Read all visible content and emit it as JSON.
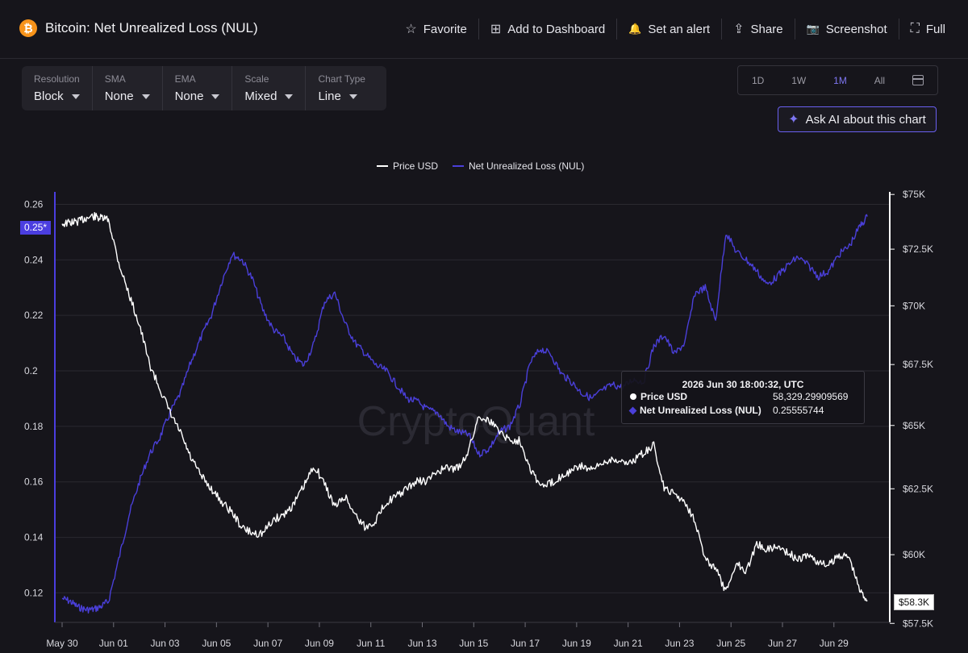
{
  "header": {
    "coin_icon": "₿",
    "title": "Bitcoin: Net Unrealized Loss (NUL)",
    "actions": [
      {
        "label": "Favorite",
        "icon": "star-icon",
        "glyph": "☆"
      },
      {
        "label": "Add to Dashboard",
        "icon": "add-dashboard-icon",
        "glyph": "⊞"
      },
      {
        "label": "Set an alert",
        "icon": "bell-icon",
        "glyph": "🔔"
      },
      {
        "label": "Share",
        "icon": "share-icon",
        "glyph": "⇪"
      },
      {
        "label": "Screenshot",
        "icon": "camera-icon",
        "glyph": "📷"
      },
      {
        "label": "Full",
        "icon": "fullscreen-icon",
        "glyph": "⛶"
      }
    ]
  },
  "controls": [
    {
      "label": "Resolution",
      "value": "Block"
    },
    {
      "label": "SMA",
      "value": "None"
    },
    {
      "label": "EMA",
      "value": "None"
    },
    {
      "label": "Scale",
      "value": "Mixed"
    },
    {
      "label": "Chart Type",
      "value": "Line"
    }
  ],
  "ranges": [
    "1D",
    "1W",
    "1M",
    "All"
  ],
  "active_range": "1M",
  "ai_button": "Ask AI about this chart",
  "tooltip": {
    "time": "2026 Jun 30 18:00:32, UTC",
    "rows": [
      {
        "name": "Price USD",
        "value": "58,329.29909569"
      },
      {
        "name": "Net Unrealized Loss (NUL)",
        "value": "0.25555744"
      }
    ]
  },
  "current_labels": {
    "left": "0.25*",
    "right": "$58.3K"
  },
  "watermark": "CryptoQuant",
  "colors": {
    "price": "#ffffff",
    "nul": "#4a3fd9",
    "accent": "#6a5ff0"
  },
  "chart_data": {
    "type": "line",
    "legend": [
      "Price USD",
      "Net Unrealized Loss (NUL)"
    ],
    "legend_position": "top-center",
    "x_ticks": [
      "May 30",
      "Jun 01",
      "Jun 03",
      "Jun 05",
      "Jun 07",
      "Jun 09",
      "Jun 11",
      "Jun 13",
      "Jun 15",
      "Jun 17",
      "Jun 19",
      "Jun 21",
      "Jun 23",
      "Jun 25",
      "Jun 27",
      "Jun 29"
    ],
    "x_range_days": [
      0,
      31.7
    ],
    "left_axis": {
      "label": "Net Unrealized Loss (NUL)",
      "ticks": [
        0.12,
        0.14,
        0.16,
        0.18,
        0.2,
        0.22,
        0.24,
        0.26
      ],
      "range": [
        0.1085,
        0.2645
      ]
    },
    "right_axis": {
      "label": "Price USD",
      "ticks": [
        "$57.5K",
        "$60K",
        "$62.5K",
        "$65K",
        "$67.5K",
        "$70K",
        "$72.5K",
        "$75K"
      ],
      "tick_values": [
        57500,
        60000,
        62500,
        65000,
        67500,
        70000,
        72500,
        75000
      ],
      "scale": "log",
      "range": [
        57450,
        75120
      ]
    },
    "grid": true,
    "series": [
      {
        "name": "Price USD",
        "axis": "right",
        "x": [
          0,
          0.3,
          0.6,
          0.9,
          1.2,
          1.5,
          1.8,
          2.2,
          2.6,
          3.0,
          3.4,
          3.8,
          4.2,
          4.6,
          5.0,
          5.4,
          5.8,
          6.2,
          6.6,
          7.0,
          7.4,
          7.8,
          8.2,
          8.6,
          9.0,
          9.4,
          9.8,
          10.2,
          10.6,
          11.0,
          11.4,
          11.8,
          12.2,
          12.6,
          13.0,
          13.4,
          13.8,
          14.2,
          14.6,
          15.0,
          15.4,
          15.8,
          16.2,
          16.6,
          17.0,
          17.4,
          17.8,
          18.2,
          18.6,
          19.0,
          19.4,
          19.8,
          20.2,
          20.6,
          21.0,
          21.4,
          21.8,
          22.2,
          22.6,
          23.0,
          23.4,
          23.8,
          24.2,
          24.6,
          25.0,
          25.4,
          25.8,
          26.2,
          26.6,
          27.0,
          27.4,
          27.8,
          28.2,
          28.6,
          29.0,
          29.4,
          29.8,
          30.2,
          30.6,
          31.0,
          31.3
        ],
        "values": [
          73650,
          73700,
          73750,
          73900,
          74000,
          73900,
          73850,
          71900,
          70500,
          69200,
          67500,
          66500,
          65500,
          64700,
          63700,
          63000,
          62500,
          62000,
          61600,
          61000,
          60800,
          60800,
          61300,
          61500,
          61900,
          62600,
          63400,
          62700,
          61800,
          62200,
          61500,
          61000,
          61300,
          62000,
          62200,
          62500,
          62800,
          62800,
          63200,
          63300,
          63300,
          64000,
          65400,
          65200,
          64800,
          64400,
          64400,
          63300,
          62600,
          62700,
          63000,
          63200,
          63400,
          63200,
          63500,
          63700,
          63500,
          63600,
          63900,
          64200,
          62500,
          62300,
          62000,
          61300,
          59800,
          59500,
          58600,
          59700,
          59400,
          60400,
          60200,
          60300,
          60100,
          59800,
          60000,
          59700,
          59600,
          60000,
          59900,
          58700,
          58330
        ]
      },
      {
        "name": "Net Unrealized Loss (NUL)",
        "axis": "left",
        "x": [
          0,
          0.3,
          0.6,
          0.9,
          1.2,
          1.5,
          1.8,
          2.2,
          2.6,
          3.0,
          3.4,
          3.8,
          4.2,
          4.6,
          5.0,
          5.4,
          5.8,
          6.2,
          6.6,
          7.0,
          7.4,
          7.8,
          8.2,
          8.6,
          9.0,
          9.4,
          9.8,
          10.2,
          10.6,
          11.0,
          11.4,
          11.8,
          12.2,
          12.6,
          13.0,
          13.4,
          13.8,
          14.2,
          14.6,
          15.0,
          15.4,
          15.8,
          16.2,
          16.6,
          17.0,
          17.4,
          17.8,
          18.2,
          18.6,
          19.0,
          19.4,
          19.8,
          20.2,
          20.6,
          21.0,
          21.4,
          21.8,
          22.2,
          22.6,
          23.0,
          23.4,
          23.8,
          24.2,
          24.6,
          25.0,
          25.4,
          25.8,
          26.2,
          26.6,
          27.0,
          27.4,
          27.8,
          28.2,
          28.6,
          29.0,
          29.4,
          29.8,
          30.2,
          30.6,
          31.0,
          31.3
        ],
        "values": [
          0.118,
          0.117,
          0.115,
          0.114,
          0.114,
          0.115,
          0.117,
          0.132,
          0.148,
          0.16,
          0.17,
          0.176,
          0.185,
          0.192,
          0.203,
          0.212,
          0.22,
          0.232,
          0.242,
          0.24,
          0.233,
          0.222,
          0.215,
          0.212,
          0.205,
          0.202,
          0.21,
          0.225,
          0.228,
          0.217,
          0.21,
          0.206,
          0.202,
          0.2,
          0.195,
          0.19,
          0.189,
          0.186,
          0.185,
          0.18,
          0.178,
          0.177,
          0.17,
          0.172,
          0.178,
          0.18,
          0.188,
          0.203,
          0.208,
          0.206,
          0.199,
          0.196,
          0.192,
          0.19,
          0.193,
          0.195,
          0.194,
          0.197,
          0.196,
          0.209,
          0.213,
          0.206,
          0.21,
          0.228,
          0.23,
          0.218,
          0.25,
          0.243,
          0.24,
          0.236,
          0.231,
          0.234,
          0.238,
          0.241,
          0.238,
          0.234,
          0.236,
          0.242,
          0.245,
          0.252,
          0.2556
        ]
      }
    ]
  }
}
